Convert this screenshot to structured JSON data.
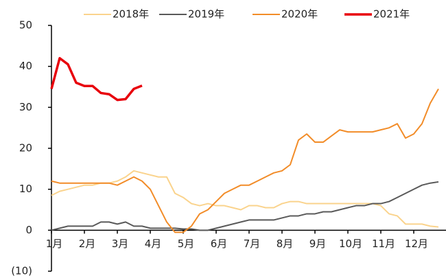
{
  "chart_data": {
    "type": "line",
    "categories": [
      "1月",
      null,
      null,
      null,
      "2月",
      null,
      null,
      null,
      "3月",
      null,
      null,
      null,
      "4月",
      null,
      null,
      null,
      "5月",
      null,
      null,
      null,
      "6月",
      null,
      null,
      null,
      "7月",
      null,
      null,
      null,
      "8月",
      null,
      null,
      null,
      "9月",
      null,
      null,
      null,
      "10月",
      null,
      null,
      null,
      "11月",
      null,
      null,
      null,
      "12月",
      null,
      null,
      null
    ],
    "series": [
      {
        "name": "2018年",
        "color": "#fad38c",
        "values": [
          8.5,
          9.5,
          10,
          10.5,
          11,
          11,
          11.5,
          11.5,
          12,
          13,
          14.5,
          14,
          13.5,
          13,
          13,
          9,
          8,
          6.5,
          6,
          6.5,
          6,
          6,
          5.5,
          5,
          6,
          6,
          5.5,
          5.5,
          6.5,
          7,
          7,
          6.5,
          6.5,
          6.5,
          6.5,
          6.5,
          6.5,
          6.5,
          6.5,
          6.5,
          6,
          4,
          3.5,
          1.5,
          1.5,
          1.5,
          1,
          0.8
        ]
      },
      {
        "name": "2019年",
        "color": "#595959",
        "values": [
          0,
          0.5,
          1,
          1,
          1,
          1,
          2,
          2,
          1.5,
          2,
          1,
          1,
          0.5,
          0.5,
          0.5,
          0.5,
          0.3,
          0.3,
          0,
          0,
          0.5,
          1,
          1.5,
          2,
          2.5,
          2.5,
          2.5,
          2.5,
          3,
          3.5,
          3.5,
          4,
          4,
          4.5,
          4.5,
          5,
          5.5,
          6,
          6,
          6.5,
          6.5,
          7,
          8,
          9,
          10,
          11,
          11.5,
          11.8
        ]
      },
      {
        "name": "2020年",
        "color": "#f28c28",
        "values": [
          12,
          11.5,
          11.5,
          11.5,
          11.5,
          11.5,
          11.5,
          11.5,
          11,
          12,
          13,
          12,
          10,
          6,
          2,
          -0.5,
          -0.5,
          1,
          4,
          5,
          7,
          9,
          10,
          11,
          11,
          12,
          13,
          14,
          14.5,
          16,
          22,
          23.5,
          21.5,
          21.5,
          23,
          24.5,
          24,
          24,
          24,
          24,
          24.5,
          25,
          26,
          22.5,
          23.5,
          26,
          31,
          34.5
        ]
      },
      {
        "name": "2021年",
        "color": "#e8000b",
        "values": [
          34.5,
          42,
          40.5,
          36,
          35.2,
          35.2,
          33.5,
          33.2,
          31.8,
          32,
          34.5,
          35.3,
          null,
          null,
          null,
          null,
          null,
          null,
          null,
          null,
          null,
          null,
          null,
          null,
          null,
          null,
          null,
          null,
          null,
          null,
          null,
          null,
          null,
          null,
          null,
          null,
          null,
          null,
          null,
          null,
          null,
          null,
          null,
          null,
          null,
          null,
          null,
          null
        ]
      }
    ],
    "ylim": [
      -10,
      50
    ],
    "yticks": [
      {
        "value": -10,
        "label": "(10)"
      },
      0,
      10,
      20,
      30,
      40,
      50
    ],
    "legend": "top"
  }
}
